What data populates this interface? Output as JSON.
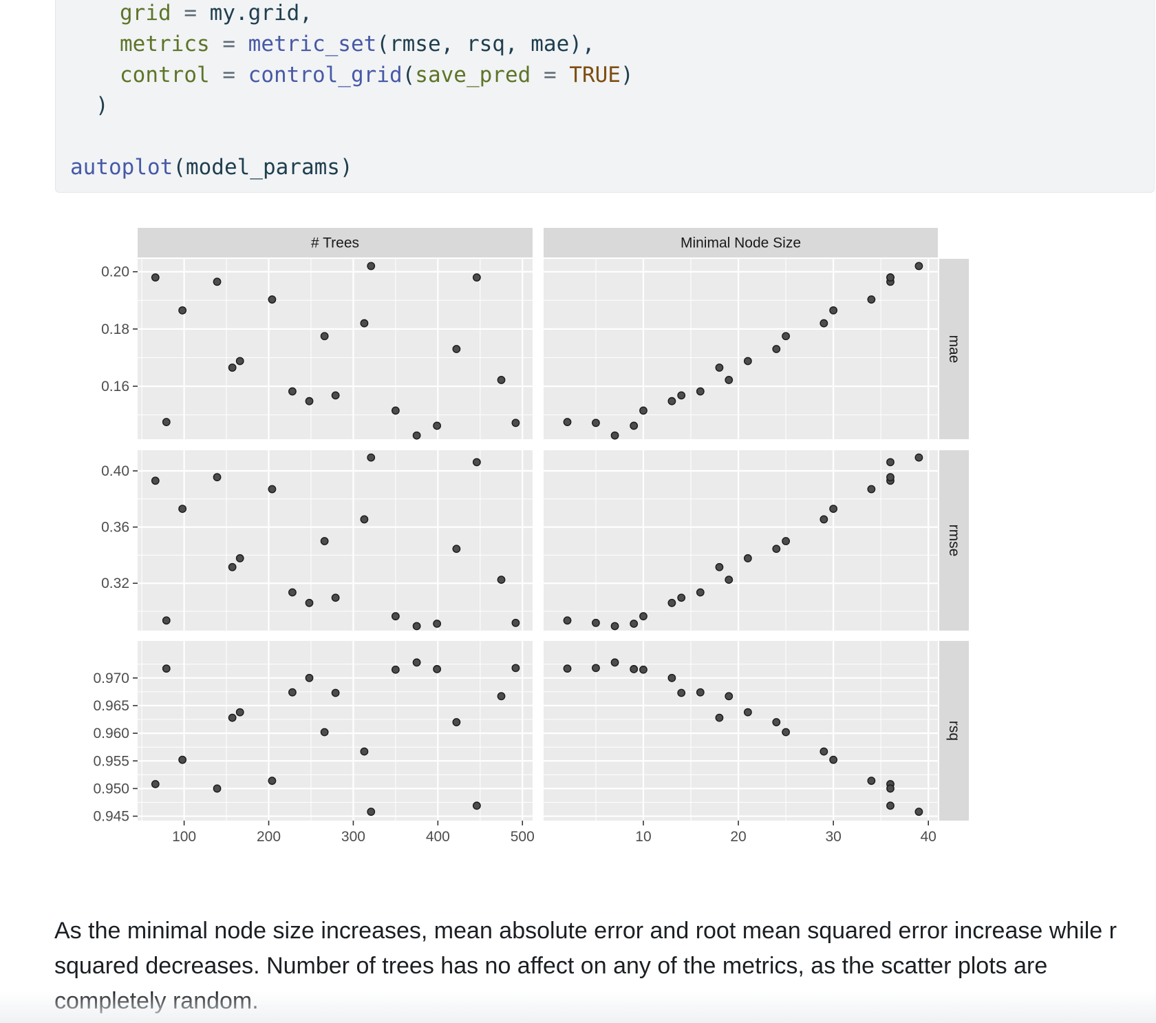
{
  "code": {
    "line_grid": {
      "arg": "grid",
      "op": " = ",
      "val": "my.grid,"
    },
    "line_metrics": {
      "arg": "metrics",
      "op": " = ",
      "fn": "metric_set",
      "rest": "(rmse, rsq, mae),"
    },
    "line_control": {
      "arg": "control",
      "op": " = ",
      "fn": "control_grid",
      "open": "(",
      "arg2": "save_pred",
      "op2": " = ",
      "bool": "TRUE",
      "close": ")"
    },
    "line_close": ")",
    "line_autoplot": {
      "fn": "autoplot",
      "rest": "(model_params)"
    }
  },
  "chart_data": {
    "type": "scatter",
    "facet_columns": [
      "# Trees",
      "Minimal Node Size"
    ],
    "facet_rows": [
      "mae",
      "rmse",
      "rsq"
    ],
    "xlim": {
      "# Trees": [
        45,
        512
      ],
      "Minimal Node Size": [
        -0.5,
        41
      ]
    },
    "x_ticks": {
      "# Trees": [
        100,
        200,
        300,
        400,
        500
      ],
      "Minimal Node Size": [
        10,
        20,
        30,
        40
      ]
    },
    "x_tick_labels": {
      "# Trees": [
        "100",
        "200",
        "300",
        "400",
        "500"
      ],
      "Minimal Node Size": [
        "10",
        "20",
        "30",
        "40"
      ]
    },
    "ylim": {
      "mae": [
        0.1415,
        0.2045
      ],
      "rmse": [
        0.2863,
        0.4147
      ],
      "rsq": [
        0.9442,
        0.9767
      ]
    },
    "y_ticks": {
      "mae": [
        0.16,
        0.18,
        0.2
      ],
      "rmse": [
        0.32,
        0.36,
        0.4
      ],
      "rsq": [
        0.945,
        0.95,
        0.955,
        0.96,
        0.965,
        0.97
      ]
    },
    "y_tick_labels": {
      "mae": [
        "0.16",
        "0.18",
        "0.20"
      ],
      "rmse": [
        "0.32",
        "0.36",
        "0.40"
      ],
      "rsq": [
        "0.945",
        "0.950",
        "0.955",
        "0.960",
        "0.965",
        "0.970"
      ]
    },
    "grid": true,
    "points": [
      {
        "trees": 66,
        "min_n": 36,
        "mae": 0.198,
        "rmse": 0.393,
        "rsq": 0.9508
      },
      {
        "trees": 79,
        "min_n": 2,
        "mae": 0.1475,
        "rmse": 0.2935,
        "rsq": 0.9717
      },
      {
        "trees": 98,
        "min_n": 30,
        "mae": 0.1865,
        "rmse": 0.373,
        "rsq": 0.9552
      },
      {
        "trees": 139,
        "min_n": 36,
        "mae": 0.1965,
        "rmse": 0.3955,
        "rsq": 0.95
      },
      {
        "trees": 157,
        "min_n": 18,
        "mae": 0.1665,
        "rmse": 0.3315,
        "rsq": 0.9628
      },
      {
        "trees": 166,
        "min_n": 21,
        "mae": 0.1688,
        "rmse": 0.3378,
        "rsq": 0.9638
      },
      {
        "trees": 204,
        "min_n": 34,
        "mae": 0.1903,
        "rmse": 0.387,
        "rsq": 0.9514
      },
      {
        "trees": 228,
        "min_n": 16,
        "mae": 0.1582,
        "rmse": 0.3135,
        "rsq": 0.9674
      },
      {
        "trees": 248,
        "min_n": 13,
        "mae": 0.1548,
        "rmse": 0.306,
        "rsq": 0.97
      },
      {
        "trees": 266,
        "min_n": 25,
        "mae": 0.1775,
        "rmse": 0.35,
        "rsq": 0.9602
      },
      {
        "trees": 279,
        "min_n": 14,
        "mae": 0.1568,
        "rmse": 0.3097,
        "rsq": 0.9673
      },
      {
        "trees": 313,
        "min_n": 29,
        "mae": 0.182,
        "rmse": 0.3655,
        "rsq": 0.9567
      },
      {
        "trees": 321,
        "min_n": 39,
        "mae": 0.202,
        "rmse": 0.4095,
        "rsq": 0.9458
      },
      {
        "trees": 350,
        "min_n": 10,
        "mae": 0.1515,
        "rmse": 0.2965,
        "rsq": 0.9715
      },
      {
        "trees": 375,
        "min_n": 7,
        "mae": 0.1428,
        "rmse": 0.2895,
        "rsq": 0.9728
      },
      {
        "trees": 399,
        "min_n": 9,
        "mae": 0.1462,
        "rmse": 0.2912,
        "rsq": 0.9716
      },
      {
        "trees": 422,
        "min_n": 24,
        "mae": 0.173,
        "rmse": 0.3445,
        "rsq": 0.962
      },
      {
        "trees": 446,
        "min_n": 36,
        "mae": 0.198,
        "rmse": 0.4062,
        "rsq": 0.9469
      },
      {
        "trees": 475,
        "min_n": 19,
        "mae": 0.1622,
        "rmse": 0.3225,
        "rsq": 0.9667
      },
      {
        "trees": 492,
        "min_n": 5,
        "mae": 0.1472,
        "rmse": 0.2918,
        "rsq": 0.9718
      }
    ]
  },
  "paragraph": "As the minimal node size increases, mean absolute error and root mean squared error increase while r squared decreases. Number of trees has no affect on any of the metrics, as the scatter plots are completely random.",
  "colors": {
    "panel": "#ebebeb",
    "strip": "#d9d9d9",
    "grid": "#ffffff",
    "point_fill": "#4d4d4d",
    "point_stroke": "#1a1a1a",
    "tick_text": "#4d4d4d"
  }
}
